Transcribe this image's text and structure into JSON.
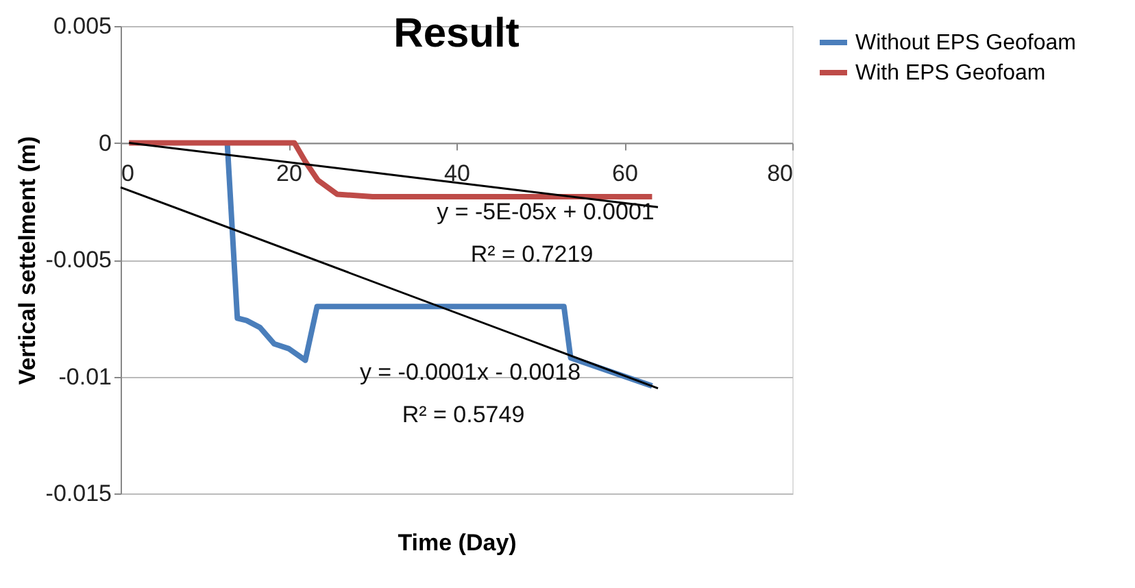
{
  "chart_data": {
    "type": "line",
    "title": "Result",
    "xlabel": "Time (Day)",
    "ylabel": "Vertical settelment (m)",
    "xlim": [
      0,
      80
    ],
    "xticks": [
      0,
      20,
      40,
      60,
      80
    ],
    "ylim": [
      -0.015,
      0.005
    ],
    "yticks": [
      -0.015,
      -0.01,
      -0.005,
      0,
      0.005
    ],
    "grid": "y",
    "legend": "right",
    "marker": "none",
    "line_style": "solid",
    "series": [
      {
        "name": "Without EPS Geofoam",
        "color": "#4a7ebb",
        "x": [
          12.7,
          13.9,
          15,
          16.6,
          18.3,
          20,
          22,
          23.4,
          52.8,
          53.6,
          63.3
        ],
        "values": [
          0,
          -0.0075,
          -0.0076,
          -0.0079,
          -0.0086,
          -0.0088,
          -0.0093,
          -0.007,
          -0.007,
          -0.0092,
          -0.0104
        ]
      },
      {
        "name": "With EPS Geofoam",
        "color": "#be4b48",
        "x": [
          1,
          20.7,
          22,
          23.5,
          25.8,
          30,
          63.3
        ],
        "values": [
          0,
          0,
          -0.0008,
          -0.0016,
          -0.0022,
          -0.0023,
          -0.0023
        ]
      },
      {
        "type": "line",
        "color": "#000000",
        "x": [
          1,
          64
        ],
        "values": [
          0,
          -0.00275
        ]
      },
      {
        "type": "line",
        "color": "#000000",
        "x": [
          0,
          64
        ],
        "values": [
          -0.0019,
          -0.0105
        ]
      }
    ],
    "annotations": [
      "y = -5E-05x + 0.0001",
      "R² = 0.7219",
      "y = -0.0001x - 0.0018",
      "R² = 0.5749"
    ]
  }
}
